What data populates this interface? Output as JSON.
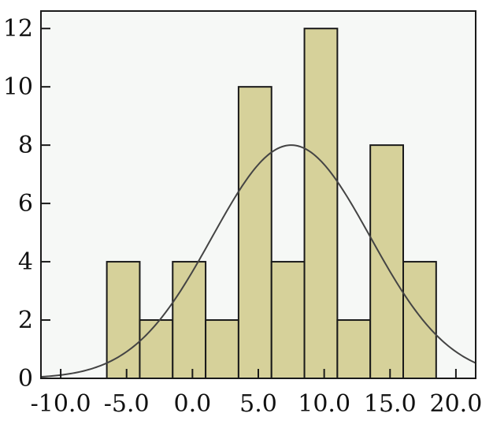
{
  "chart_data": {
    "type": "bar",
    "subtype": "histogram",
    "title": "",
    "xlabel": "",
    "ylabel": "",
    "bin_width": 2.5,
    "bins": [
      {
        "start": -6.5,
        "end": -4.0,
        "count": 4
      },
      {
        "start": -4.0,
        "end": -1.5,
        "count": 2
      },
      {
        "start": -1.5,
        "end": 1.0,
        "count": 4
      },
      {
        "start": 1.0,
        "end": 3.5,
        "count": 2
      },
      {
        "start": 3.5,
        "end": 6.0,
        "count": 10
      },
      {
        "start": 6.0,
        "end": 8.5,
        "count": 4
      },
      {
        "start": 8.5,
        "end": 11.0,
        "count": 12
      },
      {
        "start": 11.0,
        "end": 13.5,
        "count": 2
      },
      {
        "start": 13.5,
        "end": 16.0,
        "count": 8
      },
      {
        "start": 16.0,
        "end": 18.5,
        "count": 4
      }
    ],
    "normal_curve": {
      "mean": 7.5,
      "peak": 8.0,
      "sd": 6.0
    },
    "xlim": [
      -11.5,
      21.5
    ],
    "ylim": [
      0,
      12.6
    ],
    "x_ticks": [
      -10,
      -5,
      0,
      5,
      10,
      15,
      20
    ],
    "x_tick_labels": [
      "-10.0",
      "-5.0",
      "0.0",
      "5.0",
      "10.0",
      "15.0",
      "20.0"
    ],
    "y_ticks": [
      0,
      2,
      4,
      6,
      8,
      10,
      12
    ],
    "y_tick_labels": [
      "0",
      "2",
      "4",
      "6",
      "8",
      "10",
      "12"
    ],
    "grid": false,
    "legend": "none"
  },
  "colors": {
    "plot_background": "#f6f8f6",
    "bar_fill": "#d6d19a",
    "bar_edge": "#1a1a1a",
    "curve": "#444444",
    "axis": "#1a1a1a"
  }
}
